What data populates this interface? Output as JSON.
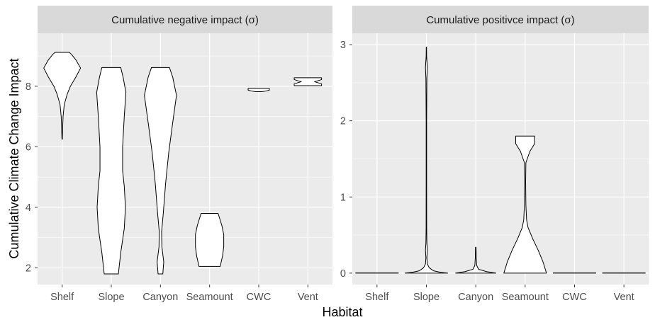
{
  "chart_data": {
    "type": "violin",
    "xlabel": "Habitat",
    "ylabel": "Cumulative Climate Change Impact",
    "categories": [
      "Shelf",
      "Slope",
      "Canyon",
      "Seamount",
      "CWC",
      "Vent"
    ],
    "grid": true,
    "legend": "none",
    "colors": {
      "panel_bg": "#ebebeb",
      "strip_bg": "#d9d9d9",
      "grid": "#ffffff",
      "violin_fill": "#ffffff",
      "violin_stroke": "#000000"
    },
    "panels": [
      {
        "title": "Cumulative negative impact (σ)",
        "ylim": [
          1.45,
          9.75
        ],
        "yticks": [
          2,
          4,
          6,
          8
        ],
        "violins": [
          {
            "category": "Shelf",
            "profile": [
              [
                6.25,
                0.008
              ],
              [
                6.6,
                0.02
              ],
              [
                7.0,
                0.04
              ],
              [
                7.4,
                0.09
              ],
              [
                7.75,
                0.22
              ],
              [
                8.0,
                0.35
              ],
              [
                8.3,
                0.58
              ],
              [
                8.6,
                0.78
              ],
              [
                8.85,
                0.6
              ],
              [
                9.05,
                0.4
              ],
              [
                9.12,
                0.3
              ]
            ]
          },
          {
            "category": "Slope",
            "profile": [
              [
                1.8,
                0.3
              ],
              [
                2.5,
                0.4
              ],
              [
                3.3,
                0.55
              ],
              [
                4.0,
                0.6
              ],
              [
                4.7,
                0.55
              ],
              [
                5.2,
                0.48
              ],
              [
                6.0,
                0.48
              ],
              [
                7.0,
                0.55
              ],
              [
                7.8,
                0.62
              ],
              [
                8.3,
                0.5
              ],
              [
                8.62,
                0.4
              ]
            ]
          },
          {
            "category": "Canyon",
            "profile": [
              [
                1.8,
                0.1
              ],
              [
                2.2,
                0.14
              ],
              [
                2.7,
                0.06
              ],
              [
                3.2,
                0.05
              ],
              [
                3.8,
                0.12
              ],
              [
                4.8,
                0.22
              ],
              [
                5.8,
                0.35
              ],
              [
                6.8,
                0.52
              ],
              [
                7.7,
                0.68
              ],
              [
                8.3,
                0.52
              ],
              [
                8.62,
                0.38
              ]
            ]
          },
          {
            "category": "Seamount",
            "profile": [
              [
                2.05,
                0.45
              ],
              [
                2.4,
                0.55
              ],
              [
                2.7,
                0.6
              ],
              [
                3.1,
                0.6
              ],
              [
                3.4,
                0.52
              ],
              [
                3.65,
                0.42
              ],
              [
                3.8,
                0.36
              ]
            ]
          },
          {
            "category": "CWC",
            "profile": [
              [
                7.82,
                0.12
              ],
              [
                7.84,
                0.3
              ],
              [
                7.87,
                0.45
              ],
              [
                7.9,
                0.45
              ],
              [
                7.93,
                0.45
              ]
            ]
          },
          {
            "category": "Vent",
            "profile": [
              [
                8.02,
                0.58
              ],
              [
                8.08,
                0.58
              ],
              [
                8.15,
                0.28
              ],
              [
                8.22,
                0.58
              ],
              [
                8.28,
                0.58
              ]
            ]
          }
        ]
      },
      {
        "title": "Cumulative positivce impact (σ)",
        "ylim": [
          -0.15,
          3.15
        ],
        "yticks": [
          0,
          1,
          2,
          3
        ],
        "violins": [
          {
            "category": "Shelf",
            "profile": [
              [
                0,
                0.9
              ],
              [
                0.002,
                0.9
              ]
            ]
          },
          {
            "category": "Slope",
            "profile": [
              [
                0,
                0.9
              ],
              [
                0.01,
                0.6
              ],
              [
                0.03,
                0.3
              ],
              [
                0.07,
                0.12
              ],
              [
                0.12,
                0.04
              ],
              [
                0.2,
                0.02
              ],
              [
                0.3,
                0.04
              ],
              [
                0.4,
                0.02
              ],
              [
                0.6,
                0.012
              ],
              [
                1.2,
                0.01
              ],
              [
                2.0,
                0.01
              ],
              [
                2.55,
                0.02
              ],
              [
                2.7,
                0.04
              ],
              [
                2.85,
                0.01
              ],
              [
                2.97,
                0.006
              ]
            ]
          },
          {
            "category": "Canyon",
            "profile": [
              [
                0,
                0.85
              ],
              [
                0.02,
                0.45
              ],
              [
                0.05,
                0.12
              ],
              [
                0.1,
                0.04
              ],
              [
                0.2,
                0.02
              ],
              [
                0.34,
                0.01
              ]
            ]
          },
          {
            "category": "Seamount",
            "profile": [
              [
                0,
                0.9
              ],
              [
                0.15,
                0.75
              ],
              [
                0.3,
                0.55
              ],
              [
                0.45,
                0.32
              ],
              [
                0.6,
                0.12
              ],
              [
                0.7,
                0.06
              ],
              [
                0.9,
                0.03
              ],
              [
                1.2,
                0.02
              ],
              [
                1.45,
                0.03
              ],
              [
                1.6,
                0.2
              ],
              [
                1.7,
                0.4
              ],
              [
                1.8,
                0.4
              ]
            ]
          },
          {
            "category": "CWC",
            "profile": [
              [
                0,
                0.9
              ],
              [
                0.002,
                0.9
              ]
            ]
          },
          {
            "category": "Vent",
            "profile": [
              [
                0,
                0.9
              ],
              [
                0.002,
                0.9
              ]
            ]
          }
        ]
      }
    ]
  }
}
